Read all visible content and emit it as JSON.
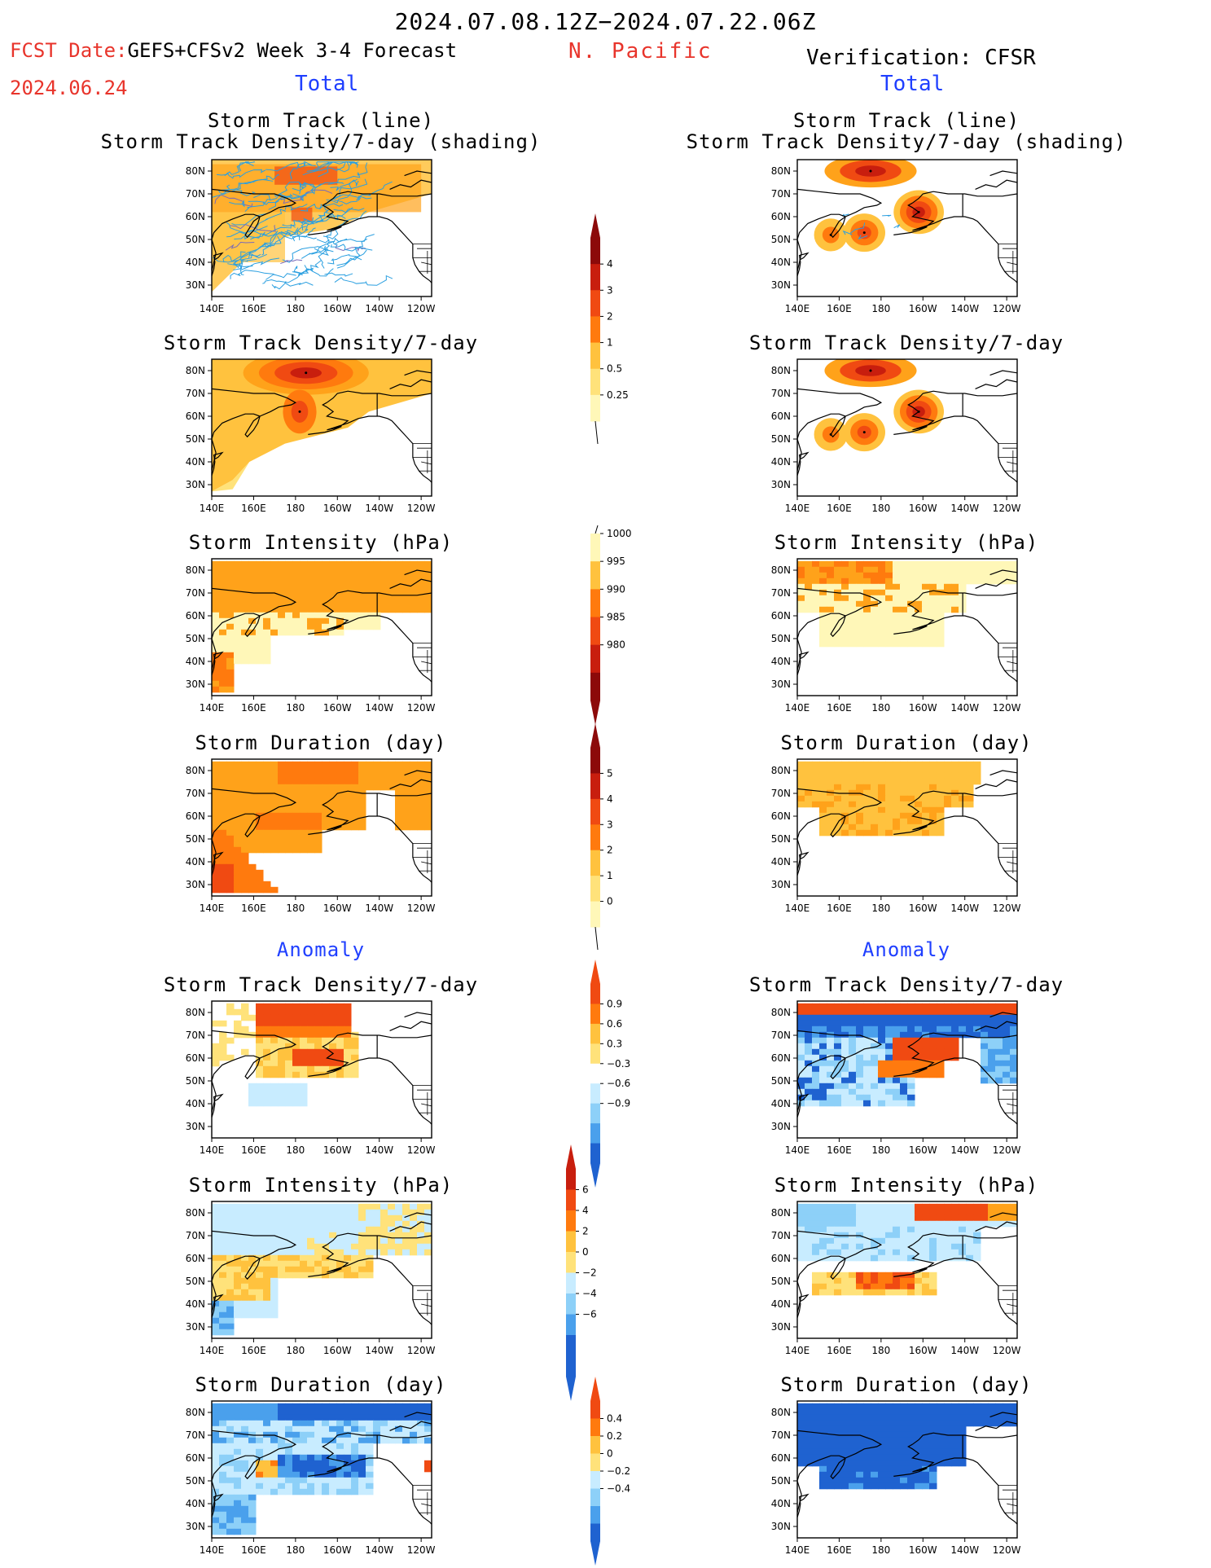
{
  "header": {
    "date_range": "2024.07.08.12Z−2024.07.22.06Z",
    "fcst_label": "FCST Date:",
    "fcst_model": "GEFS+CFSv2 Week 3-4 Forecast",
    "fcst_date": "2024.06.24",
    "region": "N. Pacific",
    "verification": "Verification: CFSR",
    "left_total": "Total",
    "right_total": "Total"
  },
  "sections": {
    "anomaly_left": "Anomaly",
    "anomaly_right": "Anomaly"
  },
  "panel_titles": {
    "track_line": "Storm Track (line)",
    "track_shading": "Storm Track Density/7-day (shading)",
    "track_density": "Storm Track Density/7-day",
    "intensity": "Storm Intensity (hPa)",
    "duration": "Storm Duration (day)"
  },
  "axes": {
    "x_ticks": [
      "140E",
      "160E",
      "180",
      "160W",
      "140W",
      "120W"
    ],
    "y_ticks": [
      "80N",
      "70N",
      "60N",
      "50N",
      "40N",
      "30N"
    ]
  },
  "colors": {
    "y1": "#fff7b8",
    "y2": "#ffe27a",
    "o1": "#ffc23e",
    "o2": "#ffa21a",
    "o3": "#ff7a0e",
    "r1": "#f04a12",
    "r2": "#c81e0e",
    "r3": "#8c0a0a",
    "b1": "#c8ecff",
    "b2": "#8dd0f8",
    "b3": "#4aa0ec",
    "b4": "#1f62d0",
    "track": "#2a9fe0",
    "track_alt": "#7a6ab8"
  },
  "chart_data": [
    {
      "type": "heatmap",
      "id": "fc-track",
      "title": "Storm Track (line)",
      "subtitle": "Storm Track Density/7-day (shading)",
      "pattern": "line",
      "fills": [
        {
          "lat": [
            62,
            83
          ],
          "lon": [
            140,
            240
          ],
          "cls": "o2"
        },
        {
          "lat": [
            74,
            82
          ],
          "lon": [
            170,
            200
          ],
          "cls": "r1"
        },
        {
          "lat": [
            40,
            62
          ],
          "lon": [
            140,
            175
          ],
          "cls": "o1"
        },
        {
          "lat": [
            58,
            64
          ],
          "lon": [
            178,
            188
          ],
          "cls": "r1"
        }
      ],
      "tracks": "many"
    },
    {
      "type": "heatmap",
      "id": "vf-track",
      "title": "Storm Track (line)",
      "subtitle": "Storm Track Density/7-day (shading)",
      "blobs": [
        {
          "lat": 80,
          "lon": 175,
          "r": [
            6,
            22
          ],
          "levels": [
            "o2",
            "r1",
            "r2"
          ]
        },
        {
          "lat": 62,
          "lon": 198,
          "r": [
            8,
            12
          ],
          "levels": [
            "o1",
            "o3",
            "r1",
            "r2"
          ]
        },
        {
          "lat": 53,
          "lon": 172,
          "r": [
            7,
            10
          ],
          "levels": [
            "o1",
            "o3",
            "r1"
          ]
        },
        {
          "lat": 52,
          "lon": 156,
          "r": [
            6,
            8
          ],
          "levels": [
            "o1",
            "o3"
          ]
        }
      ],
      "tracks": "few"
    },
    {
      "type": "heatmap",
      "id": "fc-density",
      "title": "Storm Track Density/7-day",
      "blobs": [
        {
          "lat": 79,
          "lon": 185,
          "r": [
            8,
            30
          ],
          "levels": [
            "o2",
            "o3",
            "r1",
            "r2"
          ]
        },
        {
          "lat": 62,
          "lon": 182,
          "r": [
            8,
            8
          ],
          "levels": [
            "o3",
            "r1"
          ]
        }
      ],
      "background": "o1",
      "bg_region": "north-west"
    },
    {
      "type": "heatmap",
      "id": "vf-density",
      "title": "Storm Track Density/7-day",
      "blobs": [
        {
          "lat": 80,
          "lon": 175,
          "r": [
            6,
            22
          ],
          "levels": [
            "o2",
            "r1",
            "r2"
          ]
        },
        {
          "lat": 62,
          "lon": 198,
          "r": [
            8,
            12
          ],
          "levels": [
            "o1",
            "o3",
            "r1",
            "r2"
          ]
        },
        {
          "lat": 53,
          "lon": 172,
          "r": [
            7,
            10
          ],
          "levels": [
            "o1",
            "o3",
            "r1"
          ]
        },
        {
          "lat": 52,
          "lon": 156,
          "r": [
            6,
            8
          ],
          "levels": [
            "o1",
            "o3"
          ]
        }
      ]
    },
    {
      "type": "heatmap",
      "id": "fc-intensity",
      "title": "Storm Intensity (hPa)",
      "cells": "intensity-forecast"
    },
    {
      "type": "heatmap",
      "id": "vf-intensity",
      "title": "Storm Intensity (hPa)",
      "cells": "intensity-verif"
    },
    {
      "type": "heatmap",
      "id": "fc-duration",
      "title": "Storm Duration (day)",
      "cells": "duration-forecast"
    },
    {
      "type": "heatmap",
      "id": "vf-duration",
      "title": "Storm Duration (day)",
      "cells": "duration-verif"
    },
    {
      "type": "heatmap",
      "id": "fa-density",
      "title": "Storm Track Density/7-day",
      "cells": "anom-density-forecast"
    },
    {
      "type": "heatmap",
      "id": "va-density",
      "title": "Storm Track Density/7-day",
      "cells": "anom-density-verif"
    },
    {
      "type": "heatmap",
      "id": "fa-intensity",
      "title": "Storm Intensity (hPa)",
      "cells": "anom-intensity-forecast"
    },
    {
      "type": "heatmap",
      "id": "va-intensity",
      "title": "Storm Intensity (hPa)",
      "cells": "anom-intensity-verif"
    },
    {
      "type": "heatmap",
      "id": "fa-duration",
      "title": "Storm Duration (day)",
      "cells": "anom-duration-forecast"
    },
    {
      "type": "heatmap",
      "id": "va-duration",
      "title": "Storm Duration (day)",
      "cells": "anom-duration-verif"
    }
  ],
  "colorbars": [
    {
      "id": "cb-density",
      "labels": [
        "4",
        "3",
        "2",
        "1",
        "0.5",
        "0.25"
      ],
      "colors": [
        "r3",
        "r2",
        "r1",
        "o3",
        "o1",
        "y2",
        "y1"
      ],
      "tail": "bottom-line",
      "head": "top-arrow"
    },
    {
      "id": "cb-intensity",
      "labels": [
        "1000",
        "995",
        "990",
        "985",
        "980"
      ],
      "colors": [
        "y1",
        "o1",
        "o3",
        "r1",
        "r2",
        "r3"
      ],
      "tail": "top-line",
      "head": "bottom-arrow"
    },
    {
      "id": "cb-duration",
      "labels": [
        "5",
        "4",
        "3",
        "2",
        "1",
        "0"
      ],
      "colors": [
        "r3",
        "r2",
        "r1",
        "o3",
        "o1",
        "y2",
        "y1"
      ],
      "tail": "bottom-line",
      "head": "top-arrow"
    },
    {
      "id": "cb-anom-density",
      "labels": [
        "0.9",
        "0.6",
        "0.3",
        "−0.3",
        "−0.6",
        "−0.9"
      ],
      "colors": [
        "r1",
        "o3",
        "o1",
        "y2",
        "w",
        "b1",
        "b2",
        "b3",
        "b4"
      ],
      "tail": "",
      "head": "both"
    },
    {
      "id": "cb-anom-intensity",
      "labels": [
        "6",
        "4",
        "2",
        "0",
        "−2",
        "−4",
        "−6"
      ],
      "colors": [
        "r2",
        "r1",
        "o3",
        "o1",
        "y2",
        "b1",
        "b2",
        "b3",
        "b4",
        "b4"
      ],
      "tail": "",
      "head": "both"
    },
    {
      "id": "cb-anom-duration",
      "labels": [
        "0.4",
        "0.2",
        "0",
        "−0.2",
        "−0.4"
      ],
      "colors": [
        "r1",
        "o3",
        "o1",
        "y2",
        "b1",
        "b2",
        "b3",
        "b4"
      ],
      "tail": "",
      "head": "both"
    }
  ]
}
